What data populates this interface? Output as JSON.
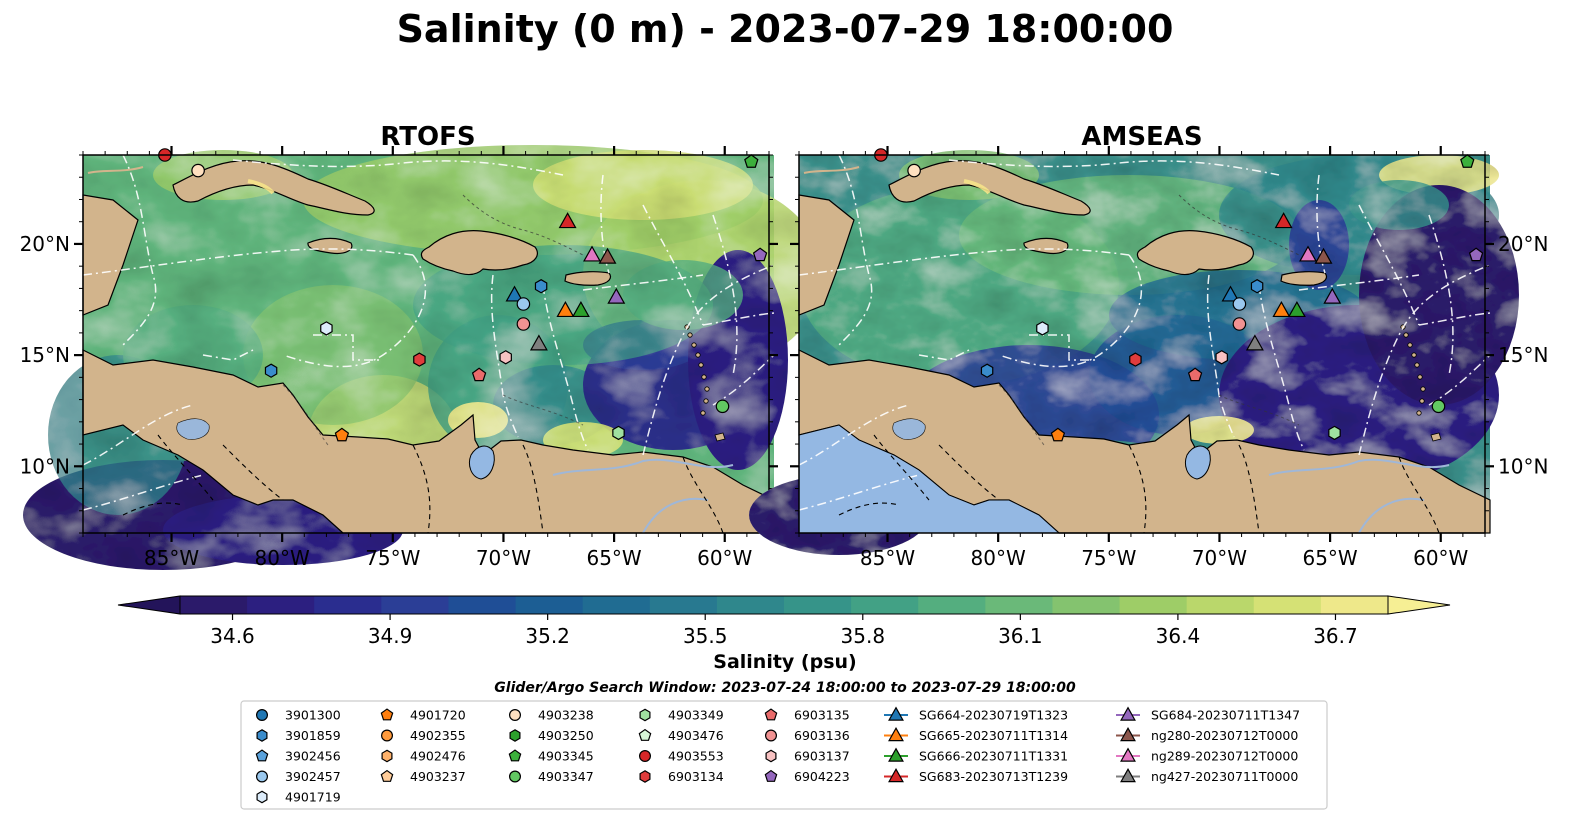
{
  "title": "Salinity (0 m) - 2023-07-29 18:00:00",
  "panels": [
    {
      "title": "RTOFS",
      "base": "rtofs"
    },
    {
      "title": "AMSEAS",
      "base": "amseas"
    }
  ],
  "axes": {
    "lon_range": [
      -89,
      -58
    ],
    "lat_range": [
      7,
      24
    ],
    "lon_ticks": [
      -85,
      -80,
      -75,
      -70,
      -65,
      -60
    ],
    "lon_tick_labels": [
      "85°W",
      "80°W",
      "75°W",
      "70°W",
      "65°W",
      "60°W"
    ],
    "lat_ticks": [
      10,
      15,
      20
    ],
    "lat_tick_labels": [
      "10°N",
      "15°N",
      "20°N"
    ]
  },
  "colors": {
    "land": "#d2b48c",
    "lake": "#94b8e3"
  },
  "colorbar": {
    "label": "Salinity (psu)",
    "min": 34.5,
    "max": 36.8,
    "ticks": [
      34.6,
      34.9,
      35.2,
      35.5,
      35.8,
      36.1,
      36.4,
      36.7
    ],
    "tick_labels": [
      "34.6",
      "34.9",
      "35.2",
      "35.5",
      "35.8",
      "36.1",
      "36.4",
      "36.7"
    ],
    "colors": [
      "#2b1a6a",
      "#2c1f80",
      "#2a2d8f",
      "#2b3e96",
      "#1f4e96",
      "#1c5e94",
      "#206c92",
      "#287990",
      "#2f878c",
      "#369489",
      "#42a185",
      "#54ae7f",
      "#6ab979",
      "#84c36f",
      "#9ecd67",
      "#bad76b",
      "#d5e175",
      "#eee88a"
    ]
  },
  "search_window": "Glider/Argo Search Window: 2023-07-24 18:00:00 to 2023-07-29 18:00:00",
  "legend": {
    "columns": [
      [
        {
          "label": "3901300",
          "marker": "circle",
          "color": "#1f77b4"
        },
        {
          "label": "3901859",
          "marker": "hexagon",
          "color": "#3a8ccc"
        },
        {
          "label": "3902456",
          "marker": "pentagon",
          "color": "#5aa2dc"
        },
        {
          "label": "3902457",
          "marker": "circle",
          "color": "#9ac8ee"
        },
        {
          "label": "4901719",
          "marker": "hexagon",
          "color": "#dcecfa"
        }
      ],
      [
        {
          "label": "4901720",
          "marker": "pentagon",
          "color": "#ff7f0e"
        },
        {
          "label": "4902355",
          "marker": "circle",
          "color": "#ff9a3c"
        },
        {
          "label": "4902476",
          "marker": "hexagon",
          "color": "#ffb26b"
        },
        {
          "label": "4903237",
          "marker": "pentagon",
          "color": "#ffcc99"
        }
      ],
      [
        {
          "label": "4903238",
          "marker": "circle",
          "color": "#ffe0c0"
        },
        {
          "label": "4903250",
          "marker": "hexagon",
          "color": "#2ca02c"
        },
        {
          "label": "4903345",
          "marker": "pentagon",
          "color": "#3cb03c"
        },
        {
          "label": "4903347",
          "marker": "circle",
          "color": "#62c862"
        }
      ],
      [
        {
          "label": "4903349",
          "marker": "hexagon",
          "color": "#a0e0a0"
        },
        {
          "label": "4903476",
          "marker": "pentagon",
          "color": "#d8f6d8"
        },
        {
          "label": "4903553",
          "marker": "circle",
          "color": "#d62728"
        },
        {
          "label": "6903134",
          "marker": "hexagon",
          "color": "#e03c3c"
        }
      ],
      [
        {
          "label": "6903135",
          "marker": "pentagon",
          "color": "#ea6b6b"
        },
        {
          "label": "6903136",
          "marker": "circle",
          "color": "#f19292"
        },
        {
          "label": "6903137",
          "marker": "hexagon",
          "color": "#f8c2c2"
        },
        {
          "label": "6904223",
          "marker": "pentagon",
          "color": "#9467bd"
        }
      ],
      [
        {
          "label": "SG664-20230719T1323",
          "marker": "triangle-line",
          "color": "#1f77b4"
        },
        {
          "label": "SG665-20230711T1314",
          "marker": "triangle-line",
          "color": "#ff7f0e"
        },
        {
          "label": "SG666-20230711T1331",
          "marker": "triangle-line",
          "color": "#2ca02c"
        },
        {
          "label": "SG683-20230713T1239",
          "marker": "triangle-line",
          "color": "#d62728"
        }
      ],
      [
        {
          "label": "SG684-20230711T1347",
          "marker": "triangle-line",
          "color": "#9467bd"
        },
        {
          "label": "ng280-20230712T0000",
          "marker": "triangle-line",
          "color": "#8c564b"
        },
        {
          "label": "ng289-20230712T0000",
          "marker": "triangle-line",
          "color": "#e377c2"
        },
        {
          "label": "ng427-20230711T0000",
          "marker": "triangle-line",
          "color": "#7f7f7f"
        }
      ]
    ]
  },
  "platforms": [
    {
      "marker": "circle",
      "color": "#d62728",
      "lon": -85.3,
      "lat": 24.0
    },
    {
      "marker": "circle",
      "color": "#ffe0c0",
      "lon": -83.8,
      "lat": 23.3
    },
    {
      "marker": "pentagon",
      "color": "#3cb03c",
      "lon": -58.8,
      "lat": 23.7
    },
    {
      "marker": "pentagon",
      "color": "#9467bd",
      "lon": -58.4,
      "lat": 19.5
    },
    {
      "marker": "triangle",
      "color": "#d62728",
      "lon": -67.1,
      "lat": 21.0
    },
    {
      "marker": "triangle",
      "color": "#e377c2",
      "lon": -66.0,
      "lat": 19.5
    },
    {
      "marker": "triangle",
      "color": "#8c564b",
      "lon": -65.3,
      "lat": 19.4
    },
    {
      "marker": "hexagon",
      "color": "#3a8ccc",
      "lon": -68.3,
      "lat": 18.1
    },
    {
      "marker": "triangle",
      "color": "#1f77b4",
      "lon": -69.5,
      "lat": 17.7
    },
    {
      "marker": "circle",
      "color": "#9ac8ee",
      "lon": -69.1,
      "lat": 17.3
    },
    {
      "marker": "triangle",
      "color": "#9467bd",
      "lon": -64.9,
      "lat": 17.6
    },
    {
      "marker": "triangle",
      "color": "#ff7f0e",
      "lon": -67.2,
      "lat": 17.0
    },
    {
      "marker": "triangle",
      "color": "#2ca02c",
      "lon": -66.5,
      "lat": 17.0
    },
    {
      "marker": "circle",
      "color": "#f19292",
      "lon": -69.1,
      "lat": 16.4
    },
    {
      "marker": "hexagon",
      "color": "#dcecfa",
      "lon": -78.0,
      "lat": 16.2
    },
    {
      "marker": "triangle",
      "color": "#7f7f7f",
      "lon": -68.4,
      "lat": 15.5
    },
    {
      "marker": "hexagon",
      "color": "#f8c2c2",
      "lon": -69.9,
      "lat": 14.9
    },
    {
      "marker": "hexagon",
      "color": "#e03c3c",
      "lon": -73.8,
      "lat": 14.8
    },
    {
      "marker": "hexagon",
      "color": "#3a8ccc",
      "lon": -80.5,
      "lat": 14.3
    },
    {
      "marker": "pentagon",
      "color": "#ea6b6b",
      "lon": -71.1,
      "lat": 14.1
    },
    {
      "marker": "circle",
      "color": "#62c862",
      "lon": -60.1,
      "lat": 12.7
    },
    {
      "marker": "hexagon",
      "color": "#a0e0a0",
      "lon": -64.8,
      "lat": 11.5
    },
    {
      "marker": "pentagon",
      "color": "#ff7f0e",
      "lon": -77.3,
      "lat": 11.4
    }
  ]
}
